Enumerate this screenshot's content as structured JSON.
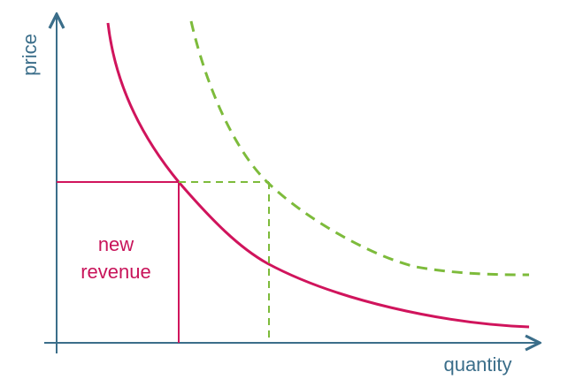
{
  "axes": {
    "x_label": "quantity",
    "y_label": "price"
  },
  "labels": {
    "area_line1": "new",
    "area_line2": "revenue"
  },
  "colors": {
    "axis": "#3b6e8a",
    "demand_curve": "#d0145c",
    "shifted_curve": "#7dbb3b",
    "label_text": "#c8145a"
  }
}
